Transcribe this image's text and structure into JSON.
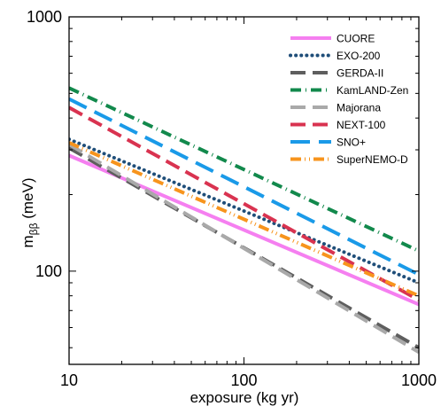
{
  "chart_data": {
    "type": "line",
    "xlabel": "exposure (kg yr)",
    "ylabel": "m",
    "ylabel_sub": "ββ",
    "ylabel_unit": " (meV)",
    "x_scale": "log",
    "y_scale": "log",
    "xlim": [
      10,
      1000
    ],
    "ylim": [
      43,
      1000
    ],
    "x_ticks": [
      10,
      100,
      1000
    ],
    "x_tick_labels": [
      "10",
      "100",
      "1000"
    ],
    "y_ticks": [
      100,
      1000
    ],
    "y_tick_labels": [
      "100",
      "1000"
    ],
    "legend_position": "top-right",
    "series": [
      {
        "name": "CUORE",
        "color": "#f57ff0",
        "dash": "solid",
        "x": [
          10,
          1000
        ],
        "y": [
          285,
          74
        ]
      },
      {
        "name": "EXO-200",
        "color": "#1f4e79",
        "dash": "dotted",
        "x": [
          10,
          1000
        ],
        "y": [
          330,
          90
        ]
      },
      {
        "name": "GERDA-II",
        "color": "#5e5e5e",
        "dash": "dashed",
        "x": [
          10,
          1000
        ],
        "y": [
          305,
          50
        ]
      },
      {
        "name": "KamLAND-Zen",
        "color": "#12894c",
        "dash": "dashdot",
        "x": [
          10,
          1000
        ],
        "y": [
          525,
          120
        ]
      },
      {
        "name": "Majorana",
        "color": "#a9a9a9",
        "dash": "dashed",
        "x": [
          10,
          1000
        ],
        "y": [
          315,
          48
        ]
      },
      {
        "name": "NEXT-100",
        "color": "#d93350",
        "dash": "dashed",
        "x": [
          10,
          1000
        ],
        "y": [
          440,
          77
        ]
      },
      {
        "name": "SNO+",
        "color": "#1a9ae8",
        "dash": "longdash",
        "x": [
          10,
          1000
        ],
        "y": [
          475,
          97
        ]
      },
      {
        "name": "SuperNEMO-D",
        "color": "#f7941d",
        "dash": "dashdotdot",
        "x": [
          10,
          1000
        ],
        "y": [
          320,
          80
        ]
      }
    ]
  }
}
